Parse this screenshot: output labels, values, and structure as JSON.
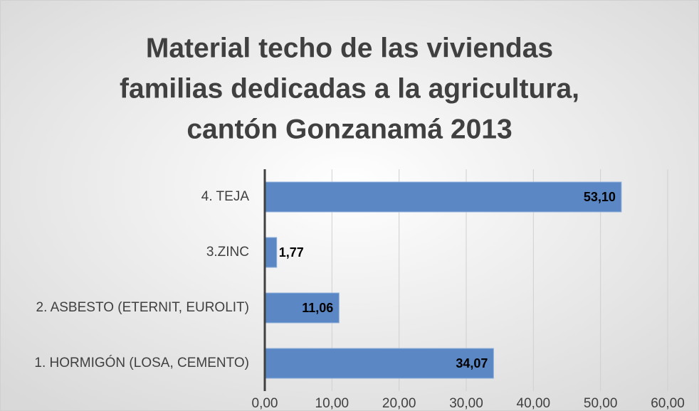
{
  "chart_data": {
    "type": "barh",
    "title": [
      "Material techo de las viviendas",
      "familias dedicadas a la agricultura,",
      "cantón Gonzanamá 2013"
    ],
    "categories": [
      "4. TEJA",
      "3.ZINC",
      "2.  ASBESTO (ETERNIT, EUROLIT)",
      "1. HORMIGÓN (LOSA, CEMENTO)"
    ],
    "values": [
      53.1,
      1.77,
      11.06,
      34.07
    ],
    "value_labels": [
      "53,10",
      "1,77",
      "11,06",
      "34,07"
    ],
    "color": "#5b87c5",
    "xlim": [
      0,
      60
    ],
    "xticks": [
      {
        "value": 0,
        "label": "0,00"
      },
      {
        "value": 10,
        "label": "10,00"
      },
      {
        "value": 20,
        "label": "20,00"
      },
      {
        "value": 30,
        "label": "30,00"
      },
      {
        "value": 40,
        "label": "40,00"
      },
      {
        "value": 50,
        "label": "50,00"
      },
      {
        "value": 60,
        "label": "60,00"
      }
    ],
    "grid": true
  }
}
